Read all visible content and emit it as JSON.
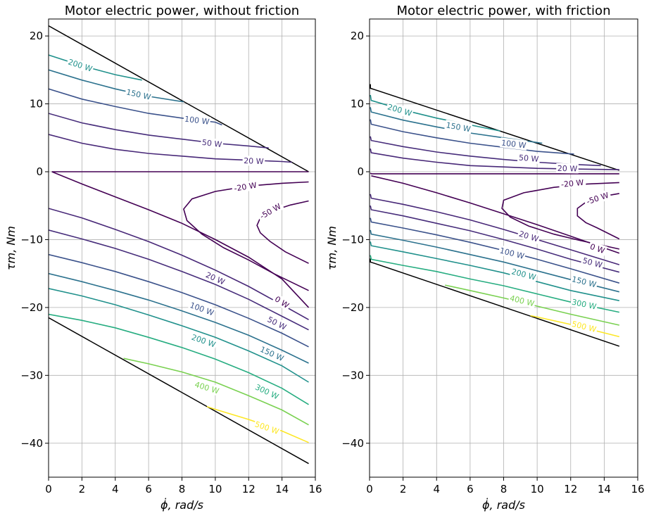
{
  "chart_data": [
    {
      "type": "contour",
      "title": "Motor electric power, without friction",
      "xlabel": "ϕ̇, rad/s",
      "ylabel": "τm, Nm",
      "xlim": [
        0,
        16
      ],
      "ylim": [
        -45,
        22.5
      ],
      "xticks": [
        0,
        2,
        4,
        6,
        8,
        10,
        12,
        14,
        16
      ],
      "yticks": [
        -40,
        -30,
        -20,
        -10,
        0,
        10,
        20
      ],
      "grid": true,
      "boundary": [
        {
          "x": [
            0,
            15.6
          ],
          "y": [
            21.5,
            0
          ]
        },
        {
          "x": [
            0,
            15.6
          ],
          "y": [
            -21.5,
            -43
          ]
        }
      ],
      "contours": [
        {
          "level": "200 W",
          "color": "#21918c",
          "x": [
            0,
            2,
            4,
            5.6
          ],
          "y": [
            17.2,
            15.6,
            14.3,
            13.5
          ],
          "label_at": [
            1.9,
            15.7
          ]
        },
        {
          "level": "150 W",
          "color": "#2c728e",
          "x": [
            0,
            2,
            4,
            6,
            8.1
          ],
          "y": [
            15.0,
            13.5,
            12.2,
            11.1,
            10.3
          ],
          "label_at": [
            5.4,
            11.4
          ]
        },
        {
          "level": "100 W",
          "color": "#3b528b",
          "x": [
            0,
            2,
            4,
            6,
            8,
            10,
            10.4
          ],
          "y": [
            12.2,
            10.7,
            9.6,
            8.6,
            7.9,
            7.3,
            6.9
          ],
          "label_at": [
            8.9,
            7.6
          ]
        },
        {
          "level": "50 W",
          "color": "#472d7b",
          "x": [
            0,
            2,
            4,
            6,
            8,
            10,
            12,
            13.2
          ],
          "y": [
            8.6,
            7.2,
            6.2,
            5.4,
            4.8,
            4.2,
            3.8,
            3.5
          ],
          "label_at": [
            9.8,
            4.2
          ]
        },
        {
          "level": "20 W",
          "color": "#482878",
          "x": [
            0,
            2,
            4,
            6,
            8,
            10,
            12,
            14,
            14.6
          ],
          "y": [
            5.5,
            4.2,
            3.3,
            2.7,
            2.3,
            1.9,
            1.7,
            1.5,
            1.4
          ],
          "label_at": [
            12.3,
            1.6
          ]
        },
        {
          "level": "",
          "color": "#440154",
          "x": [
            0.2,
            1,
            15.6
          ],
          "y": [
            0,
            0,
            0
          ],
          "label_at": null
        },
        {
          "level": "-20 W",
          "color": "#440154",
          "x": [
            15.6,
            14,
            12,
            10,
            8.6,
            8.1,
            8.3,
            9.2,
            10.5,
            12,
            13.5,
            15.6
          ],
          "y": [
            -1.5,
            -1.7,
            -2.1,
            -2.9,
            -4.0,
            -5.5,
            -7.2,
            -9.2,
            -11.2,
            -13.0,
            -15.0,
            -17.5
          ],
          "label_at": [
            11.8,
            -2.2
          ]
        },
        {
          "level": "-50 W",
          "color": "#440154",
          "x": [
            15.6,
            14.5,
            13.4,
            12.7,
            12.5,
            12.7,
            13.3,
            14.2,
            15.6
          ],
          "y": [
            -4.3,
            -4.9,
            -5.8,
            -6.8,
            -7.9,
            -9.0,
            -10.3,
            -11.8,
            -13.5
          ],
          "label_at": [
            13.3,
            -5.8
          ]
        },
        {
          "level": "0 W",
          "color": "#440154",
          "x": [
            0.2,
            2,
            4,
            6,
            8,
            10,
            12,
            14,
            15.6
          ],
          "y": [
            0,
            -1.8,
            -3.7,
            -5.6,
            -7.6,
            -10.0,
            -12.6,
            -15.8,
            -20.0
          ],
          "label_at": [
            14,
            -19.2
          ]
        },
        {
          "level": "20 W",
          "color": "#482878",
          "x": [
            0,
            2,
            4,
            6,
            8,
            10,
            12,
            14,
            15.6
          ],
          "y": [
            -5.4,
            -6.8,
            -8.5,
            -10.3,
            -12.3,
            -14.5,
            -16.9,
            -19.6,
            -21.8
          ],
          "label_at": [
            10,
            -15.7
          ]
        },
        {
          "level": "50 W",
          "color": "#472d7b",
          "x": [
            0,
            2,
            4,
            6,
            8,
            10,
            12,
            14,
            15.6
          ],
          "y": [
            -8.6,
            -9.9,
            -11.3,
            -12.9,
            -14.7,
            -16.6,
            -18.8,
            -21.3,
            -23.3
          ],
          "label_at": [
            13.7,
            -22.3
          ]
        },
        {
          "level": "100 W",
          "color": "#3b528b",
          "x": [
            0,
            2,
            4,
            6,
            8,
            10,
            12,
            14,
            15.6
          ],
          "y": [
            -12.2,
            -13.4,
            -14.7,
            -16.2,
            -17.8,
            -19.6,
            -21.6,
            -23.8,
            -25.8
          ],
          "label_at": [
            9.2,
            -20.2
          ]
        },
        {
          "level": "150 W",
          "color": "#2c728e",
          "x": [
            0,
            2,
            4,
            6,
            8,
            10,
            12,
            14,
            15.6
          ],
          "y": [
            -15.0,
            -16.2,
            -17.5,
            -18.9,
            -20.5,
            -22.2,
            -24.1,
            -26.3,
            -28.2
          ],
          "label_at": [
            13.4,
            -26.8
          ]
        },
        {
          "level": "200 W",
          "color": "#21918c",
          "x": [
            0,
            2,
            4,
            6,
            8,
            10,
            12,
            14,
            15.6
          ],
          "y": [
            -17.2,
            -18.3,
            -19.6,
            -21.1,
            -22.7,
            -24.4,
            -26.4,
            -28.6,
            -31.0
          ],
          "label_at": [
            9.3,
            -24.9
          ]
        },
        {
          "level": "300 W",
          "color": "#27ad81",
          "x": [
            0,
            2,
            4,
            6,
            8,
            10,
            12,
            14,
            15.6
          ],
          "y": [
            -21.0,
            -21.9,
            -23.0,
            -24.4,
            -25.9,
            -27.6,
            -29.6,
            -31.9,
            -34.3
          ],
          "label_at": [
            13.1,
            -32.4
          ]
        },
        {
          "level": "400 W",
          "color": "#7ad151",
          "x": [
            4.5,
            6,
            8,
            10,
            12,
            14,
            15.6
          ],
          "y": [
            -27.5,
            -28.3,
            -29.5,
            -31.0,
            -33.0,
            -35.1,
            -37.3
          ],
          "label_at": [
            9.5,
            -31.8
          ]
        },
        {
          "level": "500 W",
          "color": "#fde725",
          "x": [
            9.5,
            10,
            12,
            14,
            15.6
          ],
          "y": [
            -34.6,
            -35.0,
            -36.5,
            -38.2,
            -39.9
          ],
          "label_at": [
            13.1,
            -37.7
          ]
        }
      ]
    },
    {
      "type": "contour",
      "title": "Motor electric power, with friction",
      "xlabel": "ϕ̇, rad/s",
      "ylabel": "τm, Nm",
      "xlim": [
        0,
        16
      ],
      "ylim": [
        -45,
        22.5
      ],
      "xticks": [
        0,
        2,
        4,
        6,
        8,
        10,
        12,
        14,
        16
      ],
      "yticks": [
        -40,
        -30,
        -20,
        -10,
        0,
        10,
        20
      ],
      "grid": true,
      "boundary": [
        {
          "x": [
            0.05,
            0.05,
            0.3,
            14.9
          ],
          "y": [
            12.9,
            12.3,
            12.1,
            0.2
          ]
        },
        {
          "x": [
            0.05,
            0.05,
            0.3,
            14.9
          ],
          "y": [
            -12.8,
            -13.3,
            -13.5,
            -25.7
          ]
        }
      ],
      "contours": [
        {
          "level": "200 W",
          "color": "#21918c",
          "x": [
            0.05,
            0.1,
            2,
            4,
            6,
            7.8
          ],
          "y": [
            11.3,
            10.5,
            9.1,
            7.9,
            6.9,
            6.0
          ],
          "label_at": [
            1.8,
            9.1
          ]
        },
        {
          "level": "150 W",
          "color": "#2c728e",
          "x": [
            0.05,
            0.1,
            2,
            4,
            6,
            8,
            10.3
          ],
          "y": [
            9.5,
            8.8,
            7.6,
            6.6,
            5.7,
            5.0,
            4.2
          ],
          "label_at": [
            5.3,
            6.6
          ]
        },
        {
          "level": "100 W",
          "color": "#3b528b",
          "x": [
            0.05,
            0.1,
            2,
            4,
            6,
            8,
            10,
            12.2
          ],
          "y": [
            7.7,
            7.0,
            5.9,
            5.0,
            4.2,
            3.6,
            3.0,
            2.6
          ],
          "label_at": [
            8.6,
            4.1
          ]
        },
        {
          "level": "50 W",
          "color": "#472d7b",
          "x": [
            0.05,
            0.1,
            2,
            4,
            6,
            8,
            10,
            12,
            13.8
          ],
          "y": [
            5.2,
            4.6,
            3.7,
            2.9,
            2.3,
            1.8,
            1.4,
            1.1,
            0.9
          ],
          "label_at": [
            9.5,
            2.0
          ]
        },
        {
          "level": "20 W",
          "color": "#482878",
          "x": [
            0.05,
            0.1,
            2,
            4,
            6,
            8,
            10,
            12,
            14.9
          ],
          "y": [
            3.4,
            2.8,
            2.0,
            1.4,
            0.9,
            0.7,
            0.5,
            0.4,
            0.3
          ],
          "label_at": [
            11.8,
            0.5
          ]
        },
        {
          "level": "",
          "color": "#440154",
          "x": [
            0.05,
            0.1,
            14.9
          ],
          "y": [
            -0.2,
            -0.3,
            -0.3
          ],
          "label_at": null
        },
        {
          "level": "-20 W",
          "color": "#440154",
          "x": [
            14.9,
            13,
            11,
            9.2,
            8,
            7.9,
            8.4,
            9.5,
            11,
            12.5,
            14.9
          ],
          "y": [
            -1.6,
            -1.8,
            -2.3,
            -3.1,
            -4.2,
            -5.4,
            -6.7,
            -8.0,
            -9.2,
            -10.1,
            -11.4
          ],
          "label_at": [
            12.1,
            -1.7
          ]
        },
        {
          "level": "-50 W",
          "color": "#440154",
          "x": [
            14.9,
            14,
            12.9,
            12.4,
            12.4,
            12.9,
            13.6,
            14.9
          ],
          "y": [
            -3.2,
            -3.6,
            -4.5,
            -5.4,
            -6.5,
            -7.5,
            -8.3,
            -9.9
          ],
          "label_at": [
            13.6,
            -3.9
          ]
        },
        {
          "level": "0 W",
          "color": "#440154",
          "x": [
            0.1,
            2,
            4,
            6,
            8,
            10,
            12,
            14.9
          ],
          "y": [
            -0.6,
            -1.7,
            -3.1,
            -4.6,
            -6.2,
            -7.8,
            -9.5,
            -12.0
          ],
          "label_at": [
            13.6,
            -11.3
          ]
        },
        {
          "level": "20 W",
          "color": "#482878",
          "x": [
            0.05,
            0.1,
            2,
            4,
            6,
            8,
            10,
            12,
            14.9
          ],
          "y": [
            -3.3,
            -3.9,
            -4.8,
            -5.9,
            -7.1,
            -8.5,
            -10.0,
            -11.5,
            -13.7
          ],
          "label_at": [
            9.5,
            -9.5
          ]
        },
        {
          "level": "50 W",
          "color": "#472d7b",
          "x": [
            0.05,
            0.1,
            2,
            4,
            6,
            8,
            10,
            12,
            14.9
          ],
          "y": [
            -5.0,
            -5.6,
            -6.5,
            -7.6,
            -8.7,
            -10.0,
            -11.4,
            -12.9,
            -14.8
          ],
          "label_at": [
            13.3,
            -13.4
          ]
        },
        {
          "level": "100 W",
          "color": "#3b528b",
          "x": [
            0.05,
            0.1,
            2,
            4,
            6,
            8,
            10,
            12,
            14.9
          ],
          "y": [
            -6.8,
            -7.4,
            -8.3,
            -9.3,
            -10.4,
            -11.6,
            -12.9,
            -14.3,
            -16.4
          ],
          "label_at": [
            8.5,
            -12.0
          ]
        },
        {
          "level": "150 W",
          "color": "#2c728e",
          "x": [
            0.05,
            0.1,
            2,
            4,
            6,
            8,
            10,
            12,
            14.9
          ],
          "y": [
            -8.6,
            -9.2,
            -10.1,
            -11.1,
            -12.2,
            -13.3,
            -14.6,
            -15.9,
            -17.7
          ],
          "label_at": [
            12.8,
            -16.2
          ]
        },
        {
          "level": "200 W",
          "color": "#21918c",
          "x": [
            0.05,
            0.1,
            2,
            4,
            6,
            8,
            10,
            12,
            14.9
          ],
          "y": [
            -10.3,
            -10.9,
            -11.8,
            -12.8,
            -13.8,
            -14.9,
            -16.2,
            -17.5,
            -19.0
          ],
          "label_at": [
            9.2,
            -15.1
          ]
        },
        {
          "level": "300 W",
          "color": "#27ad81",
          "x": [
            0.05,
            0.1,
            2,
            4,
            6,
            8,
            10,
            12,
            14.9
          ],
          "y": [
            -12.3,
            -12.9,
            -13.8,
            -14.7,
            -15.8,
            -16.8,
            -18.0,
            -19.2,
            -20.7
          ],
          "label_at": [
            12.8,
            -19.5
          ]
        },
        {
          "level": "400 W",
          "color": "#7ad151",
          "x": [
            4.5,
            6,
            8,
            10,
            12,
            14.9
          ],
          "y": [
            -16.7,
            -17.5,
            -18.6,
            -19.8,
            -21.0,
            -22.6
          ],
          "label_at": [
            9.1,
            -19.0
          ]
        },
        {
          "level": "500 W",
          "color": "#fde725",
          "x": [
            9.6,
            10,
            12,
            14.9
          ],
          "y": [
            -21.2,
            -21.4,
            -22.5,
            -24.3
          ],
          "label_at": [
            12.8,
            -22.8
          ]
        }
      ]
    }
  ]
}
